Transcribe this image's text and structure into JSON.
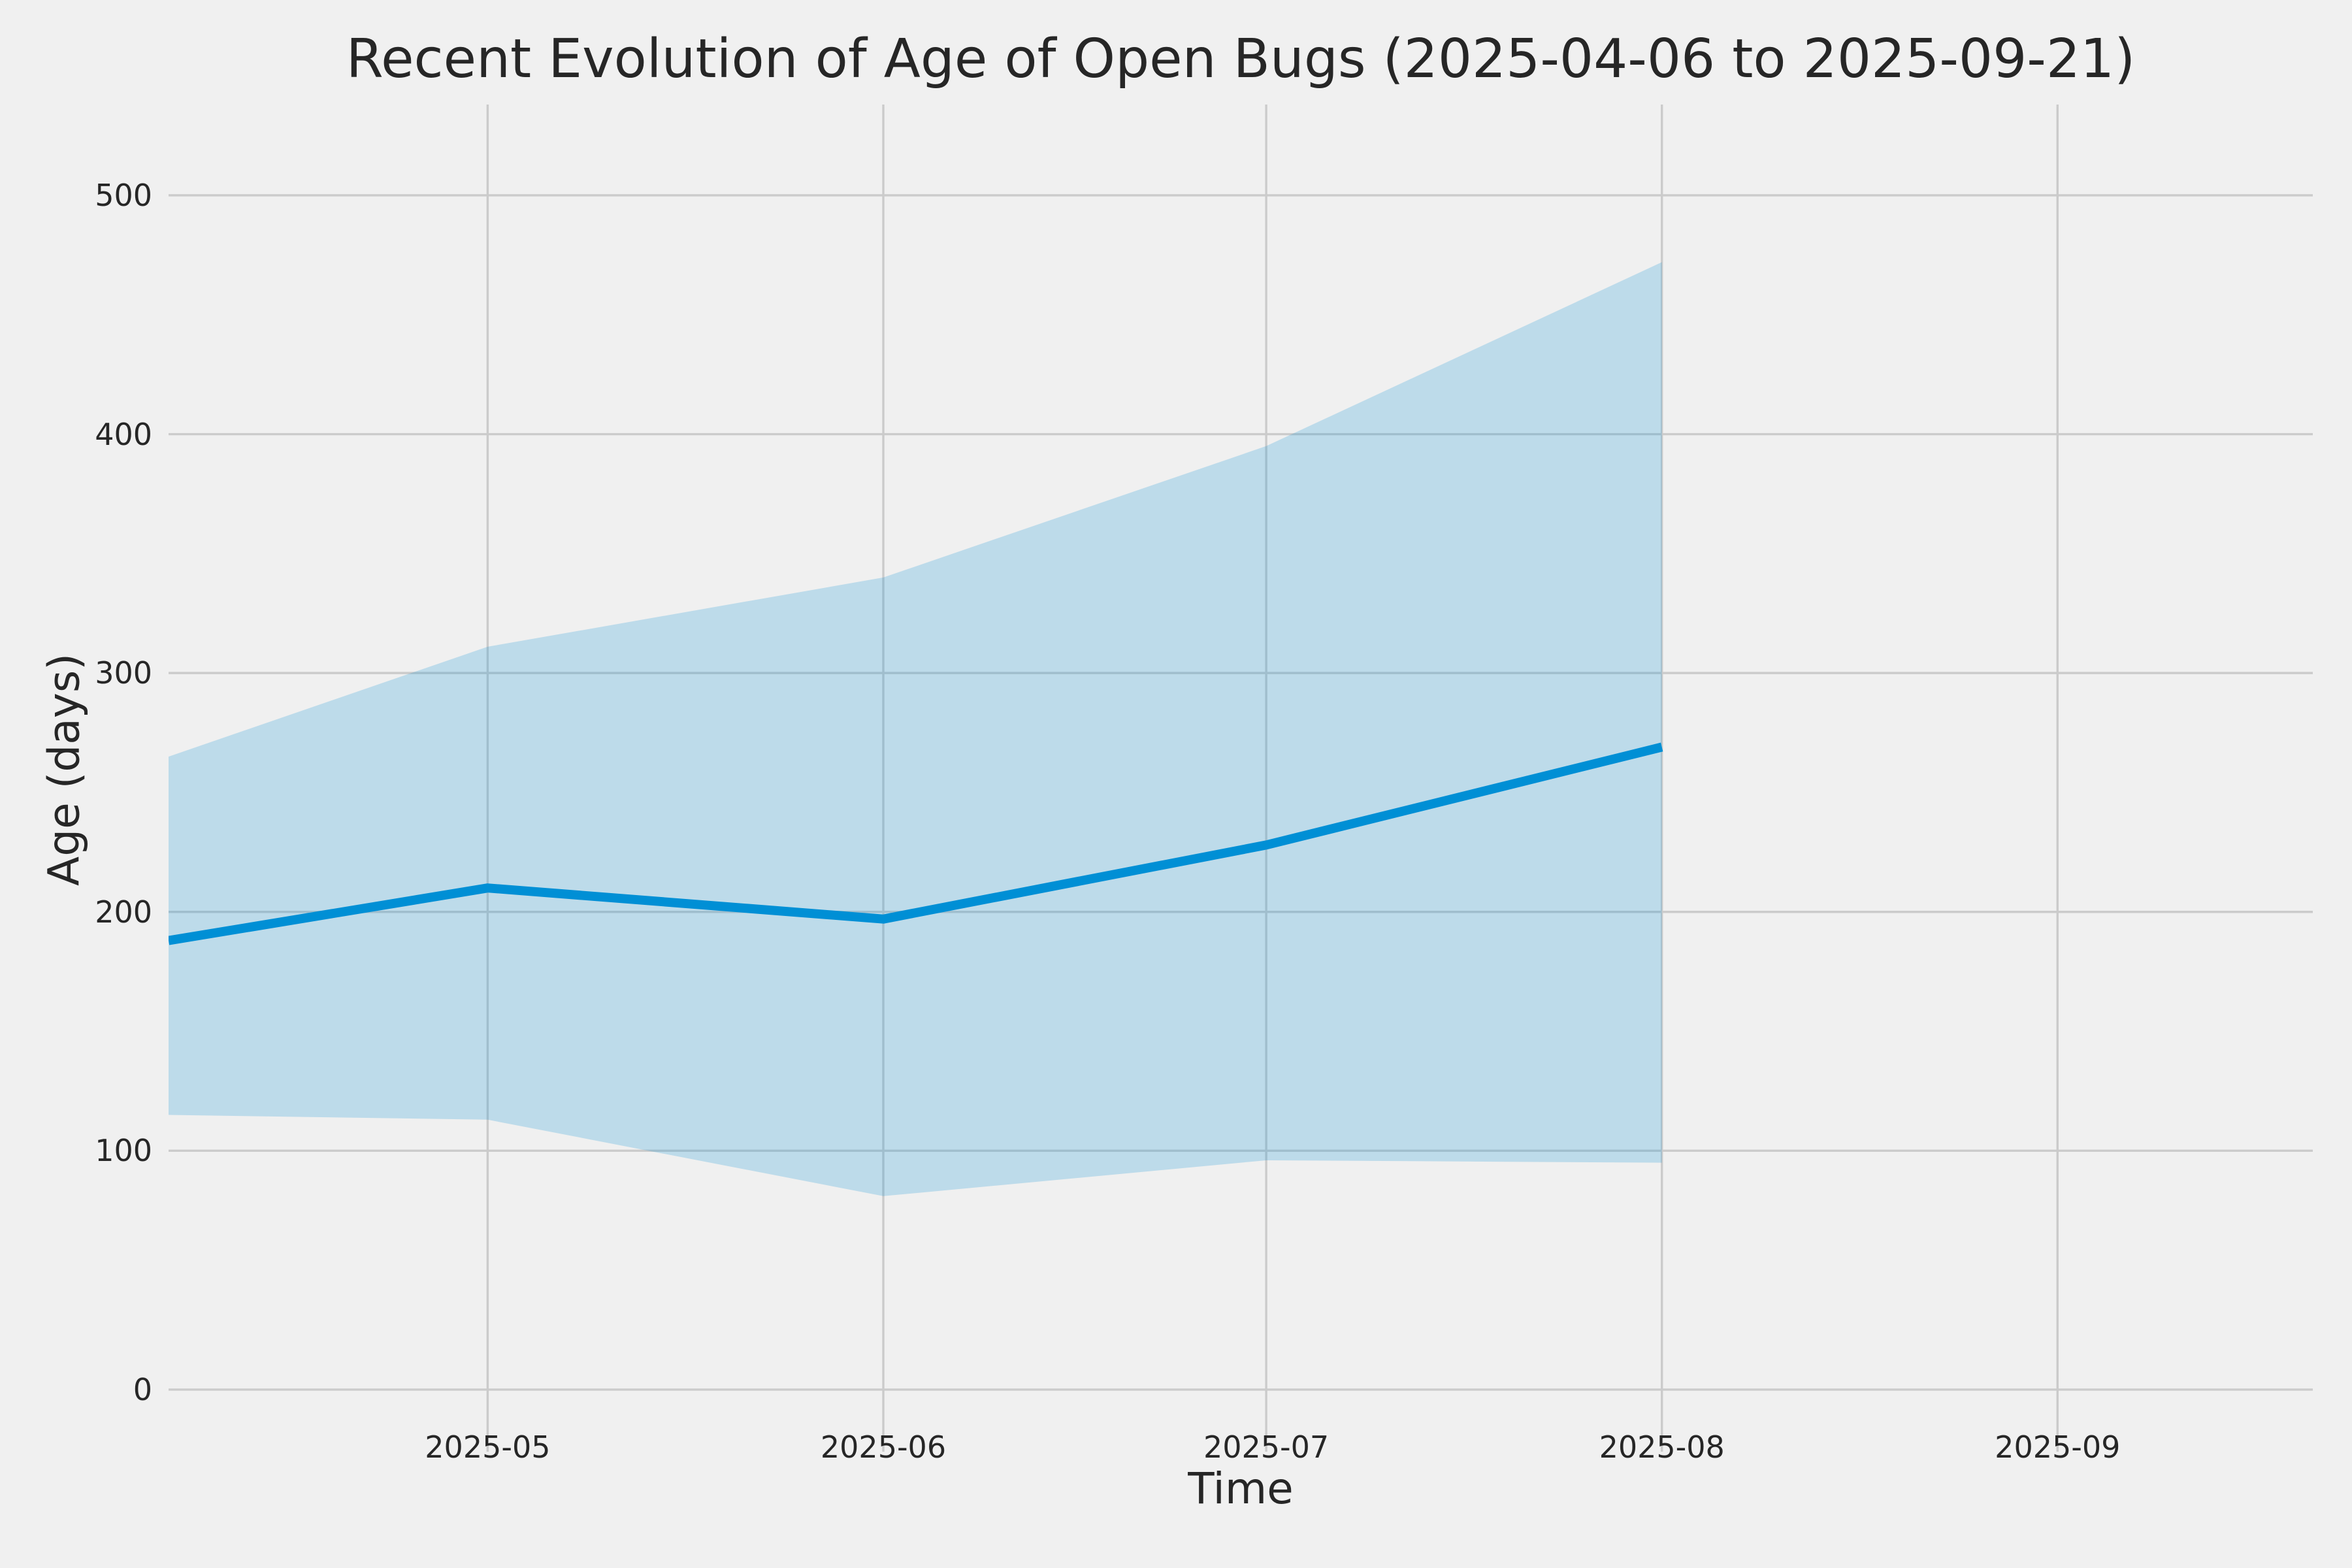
{
  "chart_data": {
    "type": "line",
    "title": "Recent Evolution of Age of Open Bugs (2025-04-06 to 2025-09-21)",
    "xlabel": "Time",
    "ylabel": "Age (days)",
    "xlim": [
      "2025-04-06",
      "2025-09-21"
    ],
    "ylim": [
      -26,
      538
    ],
    "grid": true,
    "legend": "none",
    "y_ticks": [
      0,
      100,
      200,
      300,
      400,
      500
    ],
    "x_ticks": [
      {
        "label": "2025-05",
        "date": "2025-05-01"
      },
      {
        "label": "2025-06",
        "date": "2025-06-01"
      },
      {
        "label": "2025-07",
        "date": "2025-07-01"
      },
      {
        "label": "2025-08",
        "date": "2025-08-01"
      },
      {
        "label": "2025-09",
        "date": "2025-09-01"
      }
    ],
    "x": [
      "2025-04-06",
      "2025-05-01",
      "2025-06-01",
      "2025-07-01",
      "2025-08-01"
    ],
    "series": [
      {
        "name": "mean-age",
        "kind": "line",
        "values": [
          188,
          210,
          197,
          228,
          269
        ]
      },
      {
        "name": "age-band-upper",
        "kind": "band-upper",
        "values": [
          265,
          311,
          340,
          395,
          472
        ]
      },
      {
        "name": "age-band-lower",
        "kind": "band-lower",
        "values": [
          115,
          113,
          81,
          96,
          95
        ]
      }
    ],
    "colors": {
      "background": "#f0f0f0",
      "grid": "#cbcbcb",
      "text": "#262626",
      "line": "#008fd5",
      "band_fill": "#008fd5",
      "band_alpha": 0.21
    }
  }
}
